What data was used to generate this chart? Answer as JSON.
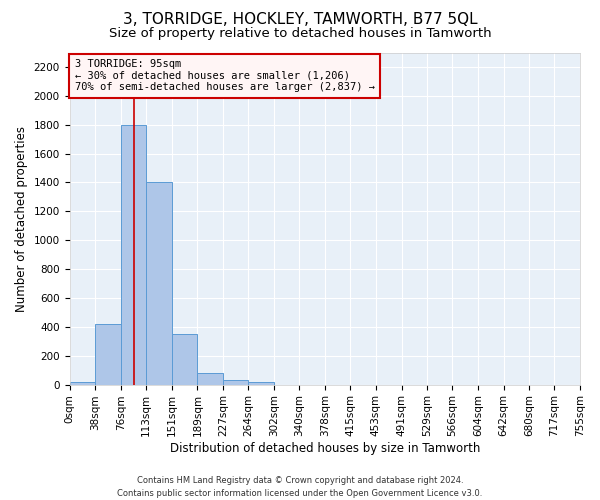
{
  "title": "3, TORRIDGE, HOCKLEY, TAMWORTH, B77 5QL",
  "subtitle": "Size of property relative to detached houses in Tamworth",
  "xlabel": "Distribution of detached houses by size in Tamworth",
  "ylabel": "Number of detached properties",
  "bar_edges": [
    0,
    38,
    76,
    113,
    151,
    189,
    227,
    264,
    302,
    340,
    378,
    415,
    453,
    491,
    529,
    566,
    604,
    642,
    680,
    717,
    755
  ],
  "bar_heights": [
    18,
    420,
    1800,
    1400,
    350,
    80,
    32,
    18,
    0,
    0,
    0,
    0,
    0,
    0,
    0,
    0,
    0,
    0,
    0,
    0
  ],
  "bar_color": "#aec6e8",
  "bar_edge_color": "#5b9bd5",
  "property_size": 95,
  "annotation_line1": "3 TORRIDGE: 95sqm",
  "annotation_line2": "← 30% of detached houses are smaller (1,206)",
  "annotation_line3": "70% of semi-detached houses are larger (2,837) →",
  "vline_color": "#cc0000",
  "annotation_box_edge": "#cc0000",
  "ylim": [
    0,
    2300
  ],
  "yticks": [
    0,
    200,
    400,
    600,
    800,
    1000,
    1200,
    1400,
    1600,
    1800,
    2000,
    2200
  ],
  "background_color": "#e8f0f8",
  "grid_color": "#ffffff",
  "footer_line1": "Contains HM Land Registry data © Crown copyright and database right 2024.",
  "footer_line2": "Contains public sector information licensed under the Open Government Licence v3.0.",
  "title_fontsize": 11,
  "subtitle_fontsize": 9.5,
  "ylabel_fontsize": 8.5,
  "xlabel_fontsize": 8.5,
  "tick_label_size": 7.5,
  "footer_fontsize": 6,
  "annotation_fontsize": 7.5
}
